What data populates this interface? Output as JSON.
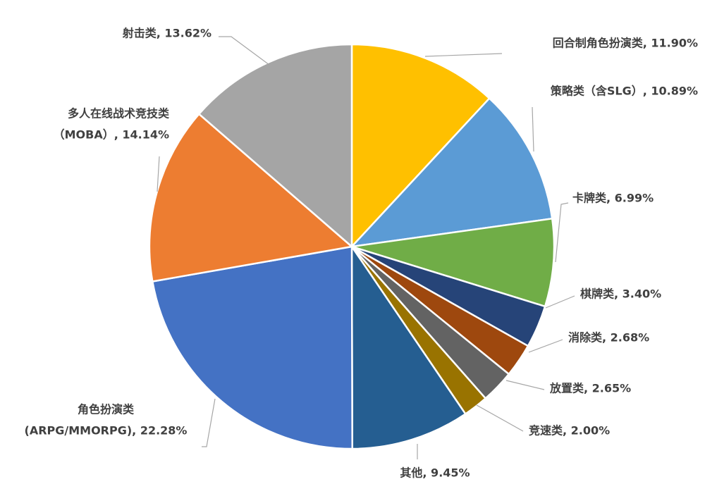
{
  "chart_data": {
    "type": "pie",
    "start": "top",
    "direction": "clockwise",
    "slices": [
      {
        "label": "回合制角色扮演类, 11.90%",
        "lines": [
          "回合制角色扮演类, 11.90%"
        ],
        "name": "回合制角色扮演类",
        "value": 11.9,
        "color": "#FFC000"
      },
      {
        "label": "策略类（含SLG）, 10.89%",
        "lines": [
          "策略类（含SLG）, 10.89%"
        ],
        "name": "策略类（含SLG）",
        "value": 10.89,
        "color": "#5B9BD5"
      },
      {
        "label": "卡牌类, 6.99%",
        "lines": [
          "卡牌类, 6.99%"
        ],
        "name": "卡牌类",
        "value": 6.99,
        "color": "#70AD47"
      },
      {
        "label": "棋牌类, 3.40%",
        "lines": [
          "棋牌类, 3.40%"
        ],
        "name": "棋牌类",
        "value": 3.4,
        "color": "#264478"
      },
      {
        "label": "消除类, 2.68%",
        "lines": [
          "消除类, 2.68%"
        ],
        "name": "消除类",
        "value": 2.68,
        "color": "#9E480E"
      },
      {
        "label": "放置类, 2.65%",
        "lines": [
          "放置类, 2.65%"
        ],
        "name": "放置类",
        "value": 2.65,
        "color": "#636363"
      },
      {
        "label": "竞速类, 2.00%",
        "lines": [
          "竞速类, 2.00%"
        ],
        "name": "竞速类",
        "value": 2.0,
        "color": "#997300"
      },
      {
        "label": "其他, 9.45%",
        "lines": [
          "其他, 9.45%"
        ],
        "name": "其他",
        "value": 9.45,
        "color": "#255E91"
      },
      {
        "label": "角色扮演类 (ARPG/MMORPG), 22.28%",
        "lines": [
          "角色扮演类",
          "(ARPG/MMORPG), 22.28%"
        ],
        "name": "角色扮演类 (ARPG/MMORPG)",
        "value": 22.28,
        "color": "#4472C4"
      },
      {
        "label": "多人在线战术竞技类（MOBA）, 14.14%",
        "lines": [
          "多人在线战术竞技类",
          "（MOBA）, 14.14%"
        ],
        "name": "多人在线战术竞技类（MOBA）",
        "value": 14.14,
        "color": "#ED7D31"
      },
      {
        "label": "射击类, 13.62%",
        "lines": [
          "射击类, 13.62%"
        ],
        "name": "射击类",
        "value": 13.62,
        "color": "#A5A5A5"
      }
    ],
    "legend": "none",
    "data_labels": "outside with leader lines"
  }
}
